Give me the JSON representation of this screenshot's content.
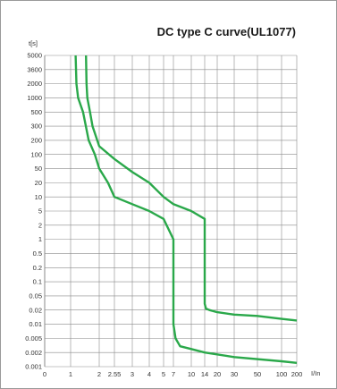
{
  "chart_data": {
    "type": "line",
    "title": "DC type C curve(UL1077)",
    "ylabel": "t[s]",
    "xlabel": "I/In",
    "x_ticks": [
      "0",
      "1",
      "2",
      "2.55",
      "3",
      "4",
      "5",
      "7",
      "10",
      "14",
      "20",
      "30",
      "50",
      "100",
      "200"
    ],
    "y_ticks": [
      "5000",
      "3600",
      "2000",
      "1000",
      "500",
      "300",
      "200",
      "100",
      "50",
      "20",
      "10",
      "5",
      "2",
      "1",
      "0.5",
      "0.2",
      "0.1",
      "0.05",
      "0.02",
      "0.01",
      "0.005",
      "0.002",
      "0.001"
    ],
    "grid": true,
    "line_color": "#2aa84a",
    "series": [
      {
        "values": [
          [
            1.13,
            5000
          ],
          [
            1.15,
            2000
          ],
          [
            1.2,
            1000
          ],
          [
            1.35,
            500
          ],
          [
            1.55,
            200
          ],
          [
            1.8,
            100
          ],
          [
            2.0,
            50
          ],
          [
            2.3,
            20
          ],
          [
            2.55,
            10
          ],
          [
            3.0,
            7
          ],
          [
            4.0,
            5
          ],
          [
            5.0,
            3
          ],
          [
            7.0,
            1
          ],
          [
            7.0,
            0.01
          ],
          [
            7.3,
            0.005
          ],
          [
            8.0,
            0.003
          ],
          [
            10.0,
            0.0025
          ],
          [
            14.0,
            0.002
          ],
          [
            30.0,
            0.0016
          ],
          [
            100.0,
            0.0013
          ],
          [
            200.0,
            0.0012
          ]
        ]
      },
      {
        "values": [
          [
            1.45,
            5000
          ],
          [
            1.47,
            2000
          ],
          [
            1.5,
            1000
          ],
          [
            1.6,
            500
          ],
          [
            1.7,
            300
          ],
          [
            2.0,
            150
          ],
          [
            2.55,
            80
          ],
          [
            3.0,
            40
          ],
          [
            4.0,
            20
          ],
          [
            5.0,
            10
          ],
          [
            7.0,
            7
          ],
          [
            10.0,
            5
          ],
          [
            14.0,
            3
          ],
          [
            14.0,
            0.03
          ],
          [
            14.5,
            0.022
          ],
          [
            16.0,
            0.02
          ],
          [
            20.0,
            0.018
          ],
          [
            30.0,
            0.016
          ],
          [
            50.0,
            0.015
          ],
          [
            100.0,
            0.013
          ],
          [
            200.0,
            0.012
          ]
        ]
      }
    ]
  }
}
